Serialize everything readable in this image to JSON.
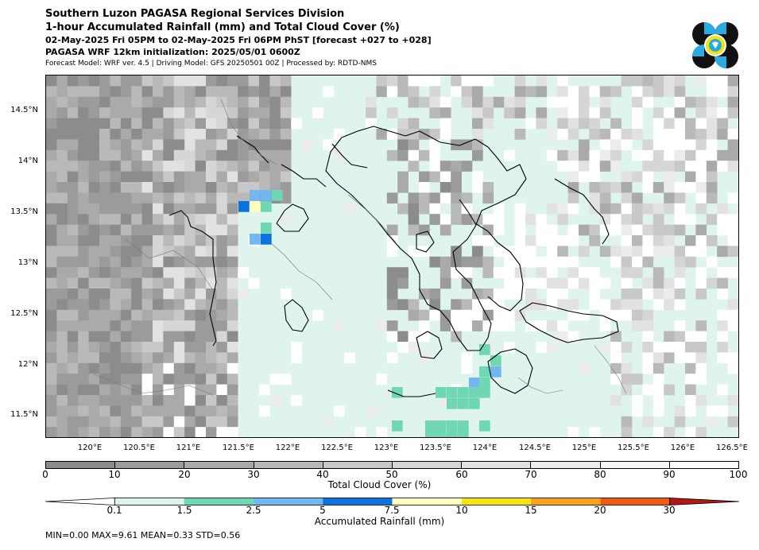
{
  "header": {
    "title_line1": "Southern Luzon PAGASA Regional Services Division",
    "title_line2": "1-hour Accumulated Rainfall (mm) and Total Cloud Cover (%)",
    "title_line3": "02-May-2025 Fri 05PM to 02-May-2025 Fri 06PM PhST [forecast +027 to +028]",
    "title_line4": "PAGASA WRF 12km initialization: 2025/05/01 0600Z",
    "title_line5": "Forecast Model: WRF ver. 4.5 | Driving Model: GFS 20250501 00Z | Processed by: RDTD-NMS"
  },
  "logo": {
    "icon": "pagasa-logo",
    "colors": [
      "#111111",
      "#29abe2",
      "#f5e10b"
    ]
  },
  "map": {
    "lat_labels": [
      "14.5°N",
      "14°N",
      "13.5°N",
      "13°N",
      "12.5°N",
      "12°N",
      "11.5°N"
    ],
    "lon_labels": [
      "120°E",
      "120.5°E",
      "121°E",
      "121.5°E",
      "122°E",
      "122.5°E",
      "123°E",
      "123.5°E",
      "124°E",
      "124.5°E",
      "125°E",
      "125.5°E",
      "126°E",
      "126.5°E"
    ]
  },
  "cloud_cover_legend": {
    "label": "Total Cloud Cover (%)",
    "ticks": [
      "0",
      "10",
      "20",
      "30",
      "40",
      "50",
      "60",
      "70",
      "80",
      "90",
      "100"
    ],
    "colors": [
      "#8c8c8c",
      "#9b9b9b",
      "#aaaaaa",
      "#b9b9b9",
      "#c8c8c8",
      "#d6d6d6",
      "#e2e2e2",
      "#ececec",
      "#f4f4f4",
      "#fbfbfb"
    ]
  },
  "rainfall_legend": {
    "label": "Accumulated Rainfall (mm)",
    "ticks": [
      "0.1",
      "1.5",
      "2.5",
      "5",
      "7.5",
      "10",
      "15",
      "20",
      "30"
    ],
    "under_color": "#ffffff",
    "colors": [
      "#ddf4ec",
      "#6fd7b4",
      "#72b7f2",
      "#0b72de",
      "#ffffc0",
      "#f9e50d",
      "#f7a21b",
      "#f05a10"
    ],
    "over_color": "#b41515"
  },
  "stats": {
    "text": "MIN=0.00   MAX=9.61   MEAN=0.33   STD=0.56"
  }
}
